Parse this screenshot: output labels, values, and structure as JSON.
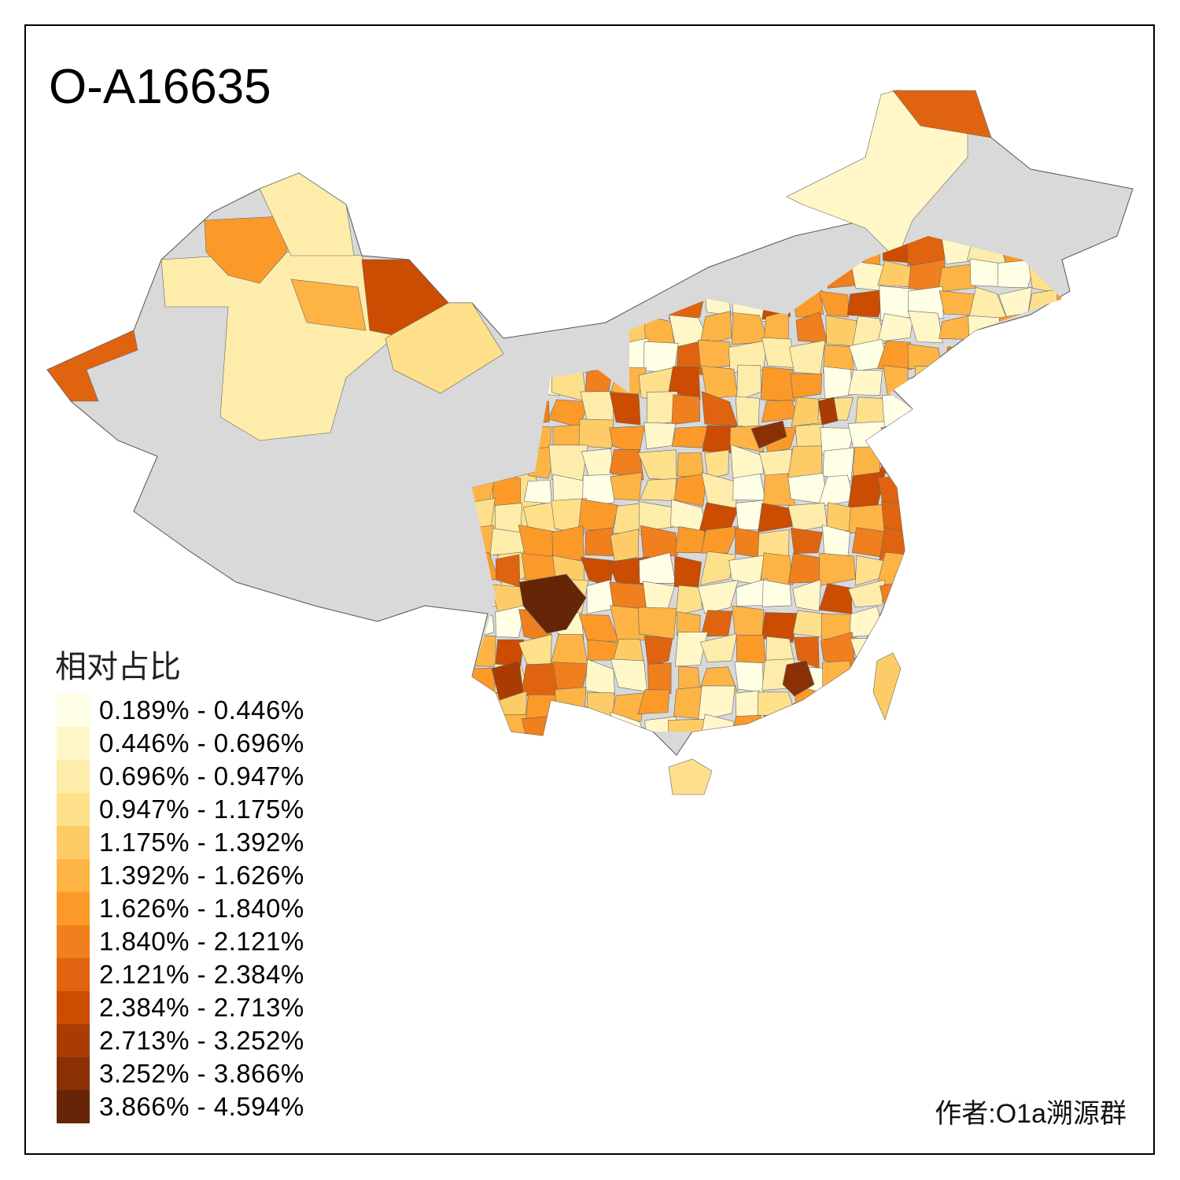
{
  "title": "O-A16635",
  "legend": {
    "title": "相对占比",
    "items": [
      {
        "label": "0.189% - 0.446%",
        "color": "#FFFFE5"
      },
      {
        "label": "0.446% - 0.696%",
        "color": "#FFF7C8"
      },
      {
        "label": "0.696% - 0.947%",
        "color": "#FEECAA"
      },
      {
        "label": "0.947% - 1.175%",
        "color": "#FEE08B"
      },
      {
        "label": "1.175% - 1.392%",
        "color": "#FECC66"
      },
      {
        "label": "1.392% - 1.626%",
        "color": "#FDB445"
      },
      {
        "label": "1.626% - 1.840%",
        "color": "#FB9A29"
      },
      {
        "label": "1.840% - 2.121%",
        "color": "#F07F1E"
      },
      {
        "label": "2.121% - 2.384%",
        "color": "#E0640F"
      },
      {
        "label": "2.384% - 2.713%",
        "color": "#CC4C02"
      },
      {
        "label": "2.713% - 3.252%",
        "color": "#A93C03"
      },
      {
        "label": "3.252% - 3.866%",
        "color": "#8A3005"
      },
      {
        "label": "3.866% - 4.594%",
        "color": "#662506"
      }
    ],
    "no_data_color": "#D9D9D9"
  },
  "author": "作者:O1a溯源群"
}
